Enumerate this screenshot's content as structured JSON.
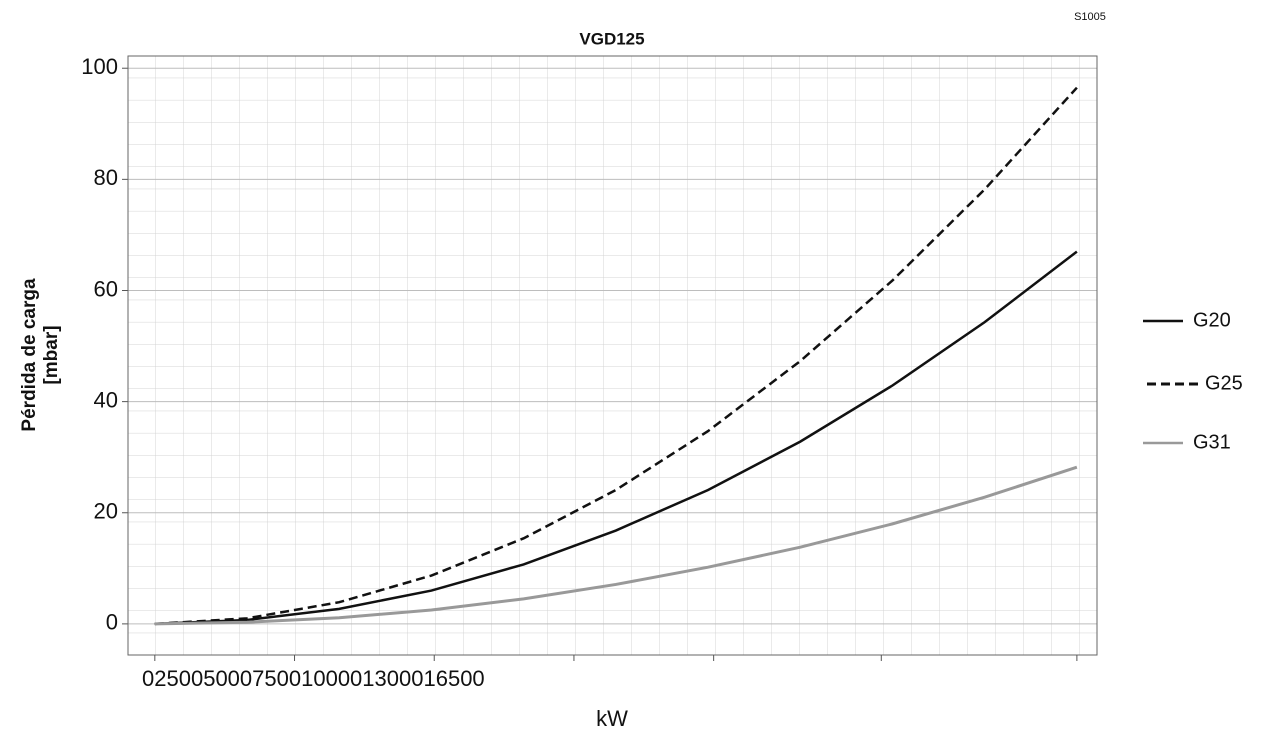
{
  "chart_data": {
    "type": "line",
    "title": "VGD125",
    "code": "S1005",
    "y_label": [
      "Pérdida de carga",
      "[mbar]"
    ],
    "x_label": "kW",
    "x": [
      0,
      1650,
      3300,
      4950,
      6600,
      8250,
      9900,
      11550,
      13200,
      14850,
      16500
    ],
    "series": [
      {
        "name": "G20",
        "color": "#111111",
        "dash": "solid",
        "values": [
          0,
          0.7,
          2.7,
          6,
          10.7,
          16.8,
          24.1,
          32.8,
          42.9,
          54.3,
          67
        ]
      },
      {
        "name": "G25",
        "color": "#111111",
        "dash": "dashed",
        "values": [
          0,
          1,
          3.9,
          8.7,
          15.4,
          24.1,
          34.7,
          47.3,
          61.8,
          78.2,
          96.5
        ]
      },
      {
        "name": "G31",
        "color": "#999999",
        "dash": "solid",
        "values": [
          0,
          0.3,
          1.1,
          2.5,
          4.5,
          7.1,
          10.2,
          13.8,
          18,
          22.8,
          28.2
        ]
      }
    ],
    "xlim": [
      -480,
      16860
    ],
    "ylim": [
      -5.6,
      102.2
    ],
    "xticks": [
      0,
      2500,
      5000,
      7500,
      10000,
      13000,
      16500
    ],
    "yticks": [
      0,
      20,
      40,
      60,
      80,
      100
    ],
    "grid": true,
    "legend": "right"
  }
}
